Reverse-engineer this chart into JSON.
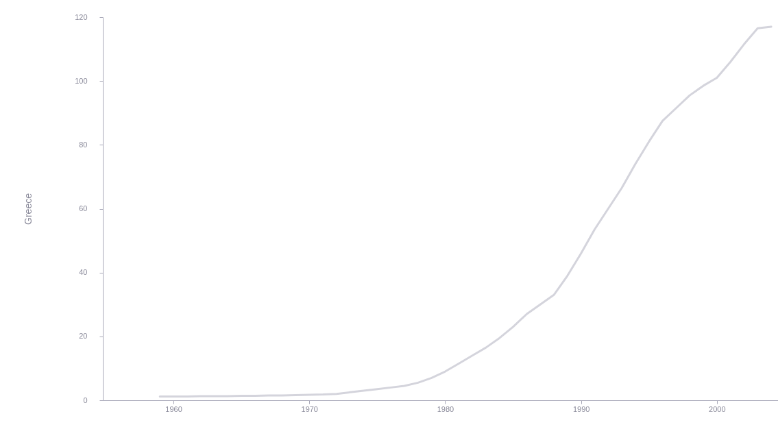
{
  "chart_data": {
    "type": "line",
    "ylabel": "Greece",
    "x": [
      1959,
      1960,
      1961,
      1962,
      1963,
      1964,
      1965,
      1966,
      1967,
      1968,
      1969,
      1970,
      1971,
      1972,
      1973,
      1974,
      1975,
      1976,
      1977,
      1978,
      1979,
      1980,
      1981,
      1982,
      1983,
      1984,
      1985,
      1986,
      1987,
      1988,
      1989,
      1990,
      1991,
      1992,
      1993,
      1994,
      1995,
      1996,
      1997,
      1998,
      1999,
      2000,
      2001,
      2002,
      2003,
      2004
    ],
    "series": [
      {
        "color": "#d4d4dc",
        "values": [
          1.2,
          1.2,
          1.2,
          1.3,
          1.3,
          1.3,
          1.4,
          1.4,
          1.5,
          1.5,
          1.6,
          1.7,
          1.8,
          2,
          2.5,
          3,
          3.5,
          4,
          4.5,
          5.5,
          7,
          9,
          11.5,
          14,
          16.5,
          19.5,
          23,
          27,
          30,
          33,
          39,
          46,
          53.5,
          60,
          66.5,
          74,
          81,
          87.5,
          91.5,
          95.5,
          98.5,
          101,
          106,
          111.5,
          116.5,
          117
        ]
      }
    ],
    "xlim": [
      1954.8,
      2004.5
    ],
    "xticks": [
      1960,
      1970,
      1980,
      1990,
      2000
    ],
    "ylim": [
      0,
      120
    ],
    "yticks": [
      0,
      20,
      40,
      60,
      80,
      100,
      120
    ],
    "grid": false,
    "legend": false,
    "marker": "none",
    "line_style": "solid"
  }
}
